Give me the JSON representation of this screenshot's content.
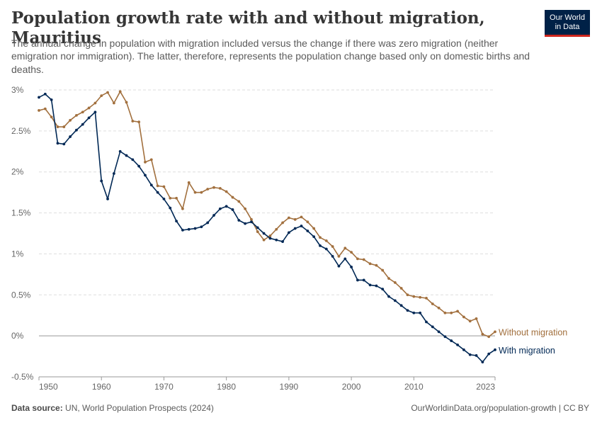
{
  "header": {
    "title": "Population growth rate with and without migration, Mauritius",
    "subtitle": "The annual change in population with migration included versus the change if there was zero migration (neither emigration nor immigration). The latter, therefore, represents the population change based only on domestic births and deaths.",
    "logo_line1": "Our World",
    "logo_line2": "in Data"
  },
  "footer": {
    "source_label": "Data source:",
    "source_text": "UN, World Population Prospects (2024)",
    "url_text": "OurWorldinData.org/population-growth | CC BY"
  },
  "colors": {
    "without_migration": "#a2703e",
    "with_migration": "#002855",
    "grid": "#dddddd",
    "zero_line": "#999999"
  },
  "chart_data": {
    "type": "line",
    "title": "Population growth rate with and without migration, Mauritius",
    "xlabel": "",
    "ylabel": "",
    "xlim": [
      1950,
      2023
    ],
    "ylim": [
      -0.5,
      3
    ],
    "grid": true,
    "y_ticks": [
      {
        "value": -0.5,
        "label": "-0.5%"
      },
      {
        "value": 0,
        "label": "0%"
      },
      {
        "value": 0.5,
        "label": "0.5%"
      },
      {
        "value": 1,
        "label": "1%"
      },
      {
        "value": 1.5,
        "label": "1.5%"
      },
      {
        "value": 2,
        "label": "2%"
      },
      {
        "value": 2.5,
        "label": "2.5%"
      },
      {
        "value": 3,
        "label": "3%"
      }
    ],
    "x_ticks": [
      {
        "value": 1950,
        "label": "1950"
      },
      {
        "value": 1960,
        "label": "1960"
      },
      {
        "value": 1970,
        "label": "1970"
      },
      {
        "value": 1980,
        "label": "1980"
      },
      {
        "value": 1990,
        "label": "1990"
      },
      {
        "value": 2000,
        "label": "2000"
      },
      {
        "value": 2010,
        "label": "2010"
      },
      {
        "value": 2023,
        "label": "2023"
      }
    ],
    "x": [
      1950,
      1951,
      1952,
      1953,
      1954,
      1955,
      1956,
      1957,
      1958,
      1959,
      1960,
      1961,
      1962,
      1963,
      1964,
      1965,
      1966,
      1967,
      1968,
      1969,
      1970,
      1971,
      1972,
      1973,
      1974,
      1975,
      1976,
      1977,
      1978,
      1979,
      1980,
      1981,
      1982,
      1983,
      1984,
      1985,
      1986,
      1987,
      1988,
      1989,
      1990,
      1991,
      1992,
      1993,
      1994,
      1995,
      1996,
      1997,
      1998,
      1999,
      2000,
      2001,
      2002,
      2003,
      2004,
      2005,
      2006,
      2007,
      2008,
      2009,
      2010,
      2011,
      2012,
      2013,
      2014,
      2015,
      2016,
      2017,
      2018,
      2019,
      2020,
      2021,
      2022,
      2023
    ],
    "series": [
      {
        "name": "Without migration",
        "key": "without_migration",
        "values": [
          2.75,
          2.77,
          2.67,
          2.55,
          2.55,
          2.63,
          2.69,
          2.73,
          2.78,
          2.84,
          2.93,
          2.97,
          2.84,
          2.98,
          2.85,
          2.62,
          2.61,
          2.12,
          2.15,
          1.83,
          1.82,
          1.68,
          1.68,
          1.55,
          1.87,
          1.75,
          1.75,
          1.79,
          1.81,
          1.8,
          1.76,
          1.69,
          1.64,
          1.55,
          1.42,
          1.27,
          1.17,
          1.22,
          1.3,
          1.38,
          1.44,
          1.42,
          1.45,
          1.39,
          1.31,
          1.2,
          1.16,
          1.09,
          0.97,
          1.07,
          1.02,
          0.94,
          0.93,
          0.88,
          0.86,
          0.8,
          0.7,
          0.65,
          0.58,
          0.5,
          0.48,
          0.47,
          0.46,
          0.39,
          0.34,
          0.28,
          0.28,
          0.3,
          0.23,
          0.18,
          0.21,
          0.02,
          -0.01,
          0.05
        ]
      },
      {
        "name": "With migration",
        "key": "with_migration",
        "values": [
          2.91,
          2.95,
          2.88,
          2.35,
          2.34,
          2.43,
          2.51,
          2.58,
          2.66,
          2.73,
          1.89,
          1.67,
          1.98,
          2.25,
          2.2,
          2.15,
          2.07,
          1.96,
          1.84,
          1.75,
          1.67,
          1.56,
          1.4,
          1.29,
          1.3,
          1.31,
          1.33,
          1.38,
          1.47,
          1.55,
          1.58,
          1.54,
          1.41,
          1.37,
          1.39,
          1.32,
          1.25,
          1.19,
          1.17,
          1.15,
          1.26,
          1.31,
          1.34,
          1.28,
          1.21,
          1.1,
          1.06,
          0.97,
          0.85,
          0.94,
          0.84,
          0.68,
          0.68,
          0.62,
          0.61,
          0.57,
          0.48,
          0.43,
          0.37,
          0.31,
          0.28,
          0.28,
          0.17,
          0.11,
          0.05,
          -0.01,
          -0.06,
          -0.11,
          -0.17,
          -0.23,
          -0.24,
          -0.32,
          -0.22,
          -0.17
        ]
      }
    ]
  }
}
